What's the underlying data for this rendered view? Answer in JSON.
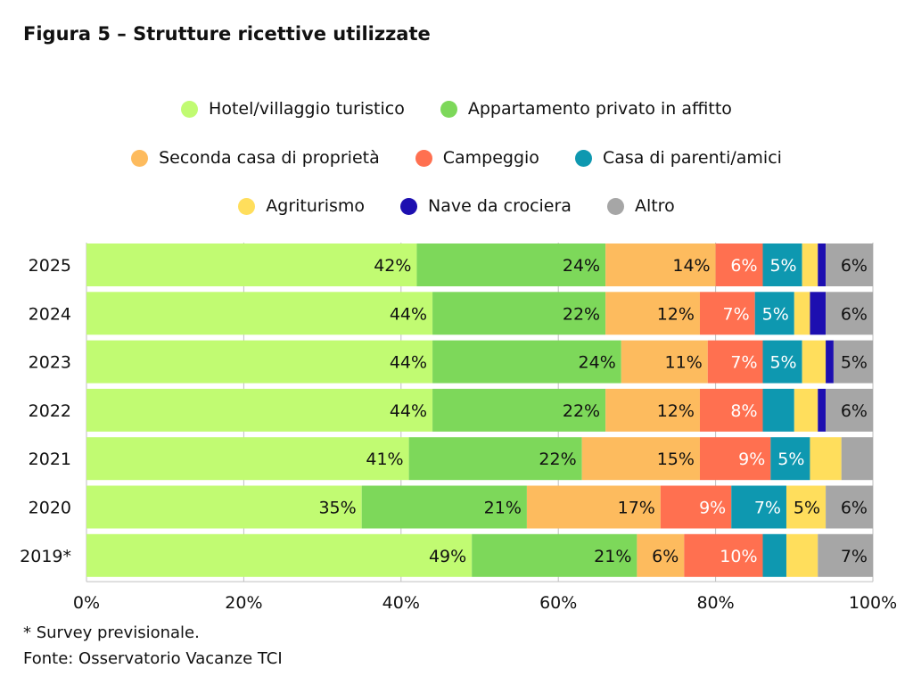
{
  "title": "Figura 5 – Strutture ricettive utilizzate",
  "footnotes": {
    "note": "* Survey previsionale.",
    "source": "Fonte: Osservatorio Vacanze TCI"
  },
  "chart_data": {
    "type": "bar",
    "orientation": "horizontal",
    "stacked": true,
    "title": "Figura 5 – Strutture ricettive utilizzate",
    "xlabel": "",
    "ylabel": "",
    "xlim": [
      0,
      100
    ],
    "x_ticks": [
      "0%",
      "20%",
      "40%",
      "60%",
      "80%",
      "100%"
    ],
    "legend_position": "top",
    "categories": [
      "2025",
      "2024",
      "2023",
      "2022",
      "2021",
      "2020",
      "2019*"
    ],
    "series": [
      {
        "name": "Hotel/villaggio turistico",
        "color": "#c1fb72",
        "label_color": "#111111",
        "values": [
          42,
          44,
          44,
          44,
          41,
          35,
          49
        ],
        "labels": [
          "42%",
          "44%",
          "44%",
          "44%",
          "41%",
          "35%",
          "49%"
        ]
      },
      {
        "name": "Appartamento privato in affitto",
        "color": "#7dd85a",
        "label_color": "#111111",
        "values": [
          24,
          22,
          24,
          22,
          22,
          21,
          21
        ],
        "labels": [
          "24%",
          "22%",
          "24%",
          "22%",
          "22%",
          "21%",
          "21%"
        ]
      },
      {
        "name": "Seconda casa di proprietà",
        "color": "#fdbb5e",
        "label_color": "#111111",
        "values": [
          14,
          12,
          11,
          12,
          15,
          17,
          6
        ],
        "labels": [
          "14%",
          "12%",
          "11%",
          "12%",
          "15%",
          "17%",
          "6%"
        ]
      },
      {
        "name": "Campeggio",
        "color": "#ff7050",
        "label_color": "#ffffff",
        "values": [
          6,
          7,
          7,
          8,
          9,
          9,
          10
        ],
        "labels": [
          "6%",
          "7%",
          "7%",
          "8%",
          "9%",
          "9%",
          "10%"
        ]
      },
      {
        "name": "Casa di parenti/amici",
        "color": "#0e98b0",
        "label_color": "#ffffff",
        "values": [
          5,
          5,
          5,
          4,
          5,
          7,
          3
        ],
        "labels": [
          "5%",
          "5%",
          "5%",
          "",
          "5%",
          "7%",
          ""
        ]
      },
      {
        "name": "Agriturismo",
        "color": "#ffde5c",
        "label_color": "#111111",
        "values": [
          2,
          2,
          3,
          3,
          4,
          5,
          4
        ],
        "labels": [
          "",
          "",
          "",
          "",
          "",
          "5%",
          ""
        ]
      },
      {
        "name": "Nave da crociera",
        "color": "#1d0fb0",
        "label_color": "#ffffff",
        "values": [
          1,
          2,
          1,
          1,
          0,
          0,
          0
        ],
        "labels": [
          "",
          "",
          "",
          "",
          "",
          "",
          ""
        ]
      },
      {
        "name": "Altro",
        "color": "#a6a6a6",
        "label_color": "#111111",
        "values": [
          6,
          6,
          5,
          6,
          4,
          6,
          7
        ],
        "labels": [
          "6%",
          "6%",
          "5%",
          "6%",
          "",
          "6%",
          "7%"
        ]
      }
    ]
  }
}
